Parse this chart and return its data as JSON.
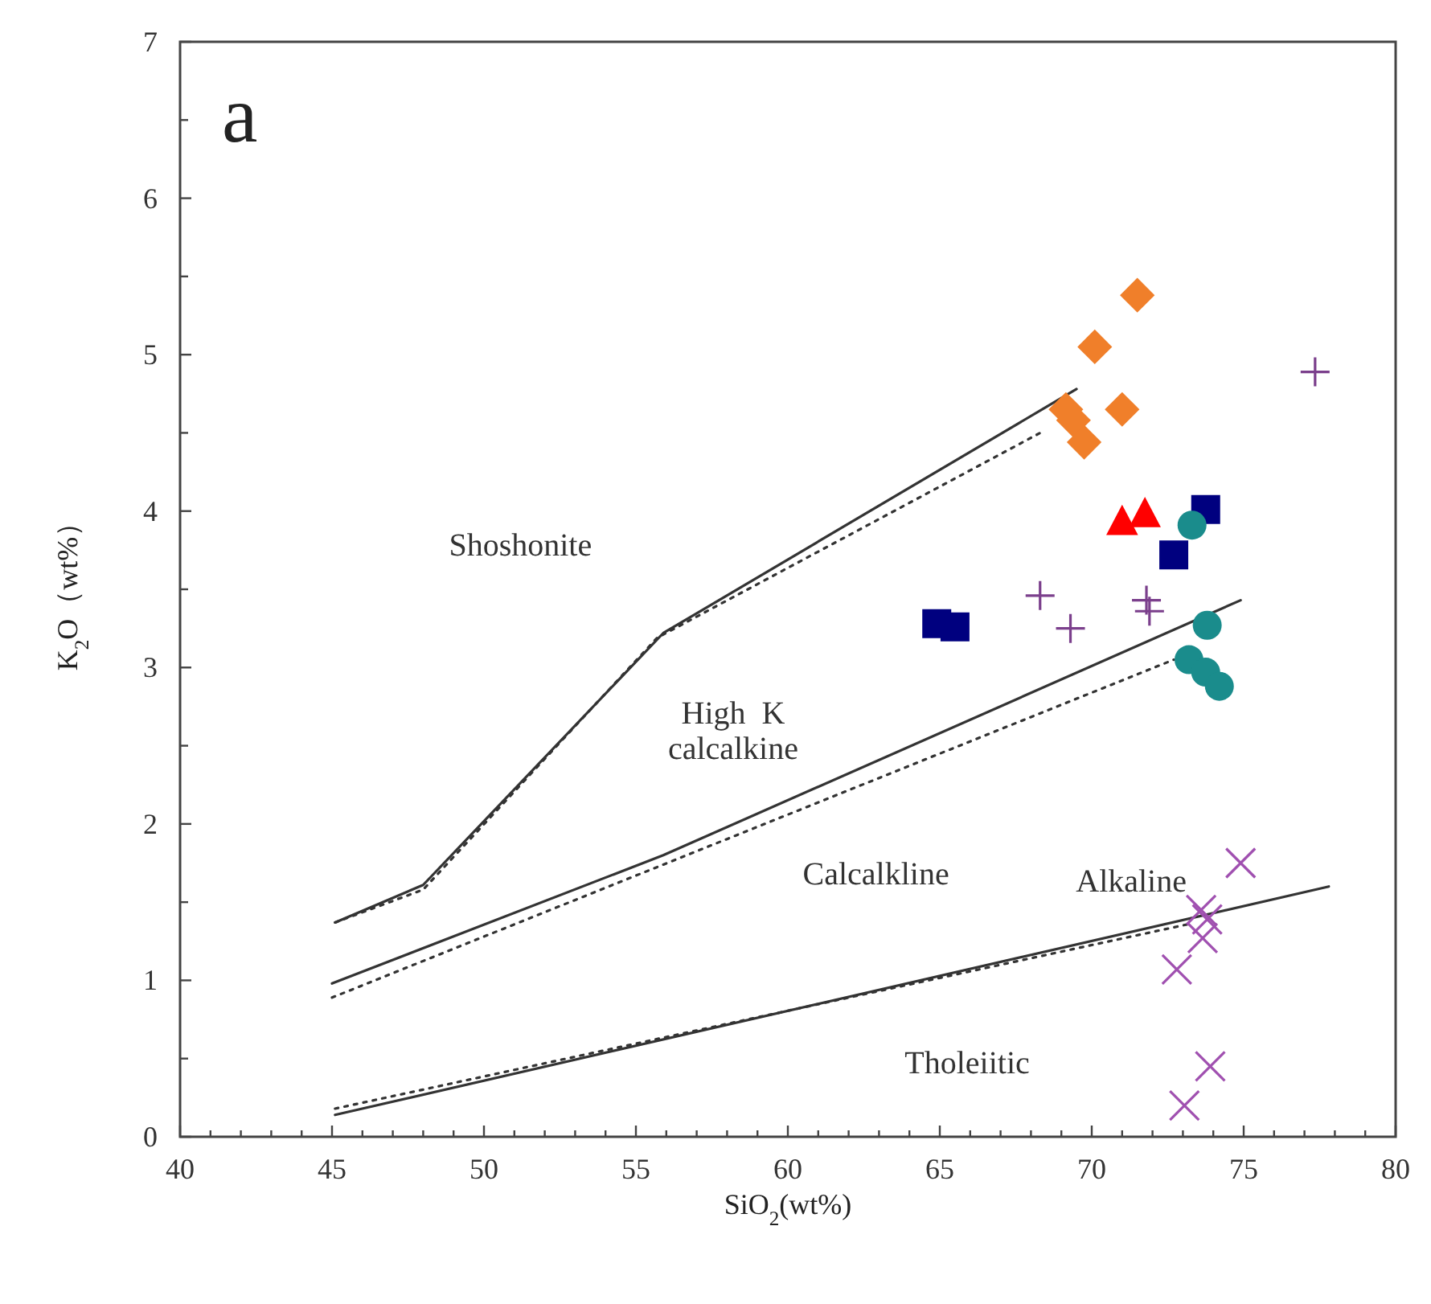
{
  "chart_data": {
    "type": "scatter",
    "xlabel": "SiO$_{2}$(wt%)",
    "ylabel": "K$_{2}$O（wt%）",
    "xlim": [
      40,
      80
    ],
    "ylim": [
      0,
      7
    ],
    "xticks": [
      40,
      {
        "value": 41,
        "label": null
      },
      {
        "value": 42,
        "label": null
      },
      {
        "value": 43,
        "label": null
      },
      {
        "value": 44,
        "label": null
      },
      45,
      {
        "value": 46,
        "label": null
      },
      {
        "value": 47,
        "label": null
      },
      {
        "value": 48,
        "label": null
      },
      {
        "value": 49,
        "label": null
      },
      50,
      {
        "value": 51,
        "label": null
      },
      {
        "value": 52,
        "label": null
      },
      {
        "value": 53,
        "label": null
      },
      {
        "value": 54,
        "label": null
      },
      55,
      {
        "value": 56,
        "label": null
      },
      {
        "value": 57,
        "label": null
      },
      {
        "value": 58,
        "label": null
      },
      {
        "value": 59,
        "label": null
      },
      60,
      {
        "value": 61,
        "label": null
      },
      {
        "value": 62,
        "label": null
      },
      {
        "value": 63,
        "label": null
      },
      {
        "value": 64,
        "label": null
      },
      65,
      {
        "value": 66,
        "label": null
      },
      {
        "value": 67,
        "label": null
      },
      {
        "value": 68,
        "label": null
      },
      {
        "value": 69,
        "label": null
      },
      70,
      {
        "value": 71,
        "label": null
      },
      {
        "value": 72,
        "label": null
      },
      {
        "value": 73,
        "label": null
      },
      {
        "value": 74,
        "label": null
      },
      75,
      {
        "value": 76,
        "label": null
      },
      {
        "value": 77,
        "label": null
      },
      {
        "value": 78,
        "label": null
      },
      {
        "value": 79,
        "label": null
      },
      80
    ],
    "yticks": [
      0,
      {
        "value": 0.5,
        "label": null
      },
      1,
      {
        "value": 1.5,
        "label": null
      },
      2,
      {
        "value": 2.5,
        "label": null
      },
      3,
      {
        "value": 3.5,
        "label": null
      },
      4,
      {
        "value": 4.5,
        "label": null
      },
      5,
      {
        "value": 5.5,
        "label": null
      },
      6,
      {
        "value": 6.5,
        "label": null
      },
      7
    ],
    "grid": false,
    "series": [
      {
        "type": "line",
        "color": "#333333",
        "line_style": "solid",
        "marker": "none",
        "x": [
          45.1,
          48.0,
          55.9,
          69.5
        ],
        "values": [
          1.37,
          1.61,
          3.22,
          4.78
        ]
      },
      {
        "type": "line",
        "color": "#333333",
        "line_style": "dotted",
        "marker": "none",
        "x": [
          45.1,
          48.0,
          55.7,
          68.4
        ],
        "values": [
          1.37,
          1.58,
          3.19,
          4.51
        ]
      },
      {
        "type": "line",
        "color": "#333333",
        "line_style": "solid",
        "marker": "none",
        "x": [
          45.0,
          55.9,
          74.9
        ],
        "values": [
          0.98,
          1.8,
          3.43
        ]
      },
      {
        "type": "line",
        "color": "#333333",
        "line_style": "dotted",
        "marker": "none",
        "x": [
          45.0,
          72.7
        ],
        "values": [
          0.89,
          3.05
        ]
      },
      {
        "type": "line",
        "color": "#333333",
        "line_style": "solid",
        "marker": "none",
        "x": [
          45.1,
          77.8
        ],
        "values": [
          0.14,
          1.6
        ]
      },
      {
        "type": "line",
        "color": "#333333",
        "line_style": "dotted",
        "marker": "none",
        "x": [
          45.1,
          73.2
        ],
        "values": [
          0.18,
          1.36
        ]
      },
      {
        "color": "#f07f2a",
        "marker": "diamond",
        "x": [
          71.5,
          70.1,
          69.15,
          69.4,
          71.0,
          69.75
        ],
        "values": [
          5.38,
          5.05,
          4.65,
          4.58,
          4.65,
          4.44
        ]
      },
      {
        "color": "#ff0000",
        "marker": "triangle",
        "x": [
          71.0,
          71.75
        ],
        "values": [
          3.93,
          3.98
        ]
      },
      {
        "color": "#00007f",
        "marker": "square",
        "x": [
          73.75,
          72.7,
          64.9,
          65.5
        ],
        "values": [
          4.01,
          3.72,
          3.28,
          3.26
        ]
      },
      {
        "color": "#1a8c8c",
        "marker": "circle",
        "x": [
          73.3,
          73.8,
          73.2,
          73.75,
          74.2
        ],
        "values": [
          3.91,
          3.27,
          3.05,
          2.97,
          2.88
        ]
      },
      {
        "color": "#7b3f8c",
        "marker": "plus",
        "x": [
          77.35,
          68.3,
          69.3,
          71.8,
          71.9
        ],
        "values": [
          4.89,
          3.46,
          3.25,
          3.43,
          3.36
        ]
      },
      {
        "color": "#a050b0",
        "marker": "cross",
        "x": [
          74.9,
          73.8,
          73.6,
          73.65,
          72.8,
          73.9,
          73.05
        ],
        "values": [
          1.75,
          1.39,
          1.45,
          1.27,
          1.07,
          0.45,
          0.2
        ]
      }
    ],
    "annotations": [
      "a",
      "Shoshonite",
      "High  K\ncalcalkine",
      "Calcalkline",
      "Alkaline",
      "Tholeiitic"
    ]
  }
}
